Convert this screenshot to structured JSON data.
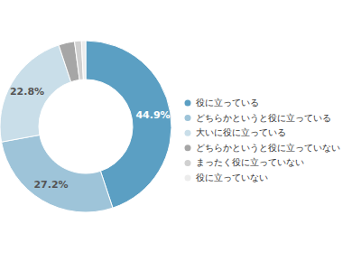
{
  "chart_data": {
    "type": "donut",
    "categories": [
      "役に立っている",
      "どちらかというと役に立っている",
      "大いに役に立っている",
      "どちらかというと役に立っていない",
      "まったく役に立っていない",
      "役に立っていない"
    ],
    "values": [
      44.9,
      27.2,
      22.8,
      3.0,
      1.3,
      0.8
    ],
    "value_labels": [
      "44.9%",
      "27.2%",
      "22.8%",
      null,
      null,
      null
    ],
    "data_labels": true,
    "colors": [
      "#5b9fc3",
      "#9ec4d9",
      "#c9dee9",
      "#a6a6a6",
      "#d0d0d0",
      "#ececec"
    ],
    "legend": "right"
  }
}
